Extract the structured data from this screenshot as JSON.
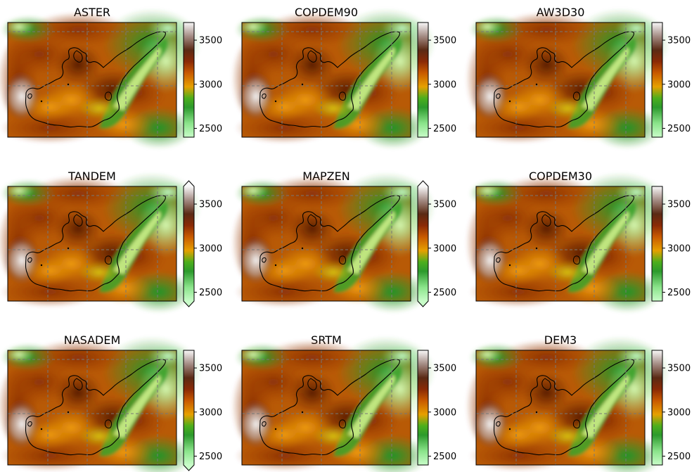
{
  "chart_data": {
    "type": "heatmap",
    "layout": "3x3 grid",
    "colormap": "terrain",
    "grid": true,
    "glacier_outline": true,
    "colorbar_ticks": [
      2500,
      3000,
      3500
    ],
    "panels": [
      {
        "title": "ASTER",
        "vmin": 2400,
        "vmax": 3700,
        "colorbar_extend": "neither"
      },
      {
        "title": "COPDEM90",
        "vmin": 2400,
        "vmax": 3700,
        "colorbar_extend": "neither"
      },
      {
        "title": "AW3D30",
        "vmin": 2400,
        "vmax": 3700,
        "colorbar_extend": "neither"
      },
      {
        "title": "TANDEM",
        "vmin": 2400,
        "vmax": 3700,
        "colorbar_extend": "both"
      },
      {
        "title": "MAPZEN",
        "vmin": 2400,
        "vmax": 3700,
        "colorbar_extend": "both"
      },
      {
        "title": "COPDEM30",
        "vmin": 2400,
        "vmax": 3700,
        "colorbar_extend": "neither"
      },
      {
        "title": "NASADEM",
        "vmin": 2400,
        "vmax": 3700,
        "colorbar_extend": "min"
      },
      {
        "title": "SRTM",
        "vmin": 2400,
        "vmax": 3700,
        "colorbar_extend": "neither"
      },
      {
        "title": "DEM3",
        "vmin": 2400,
        "vmax": 3700,
        "colorbar_extend": "neither"
      }
    ]
  }
}
